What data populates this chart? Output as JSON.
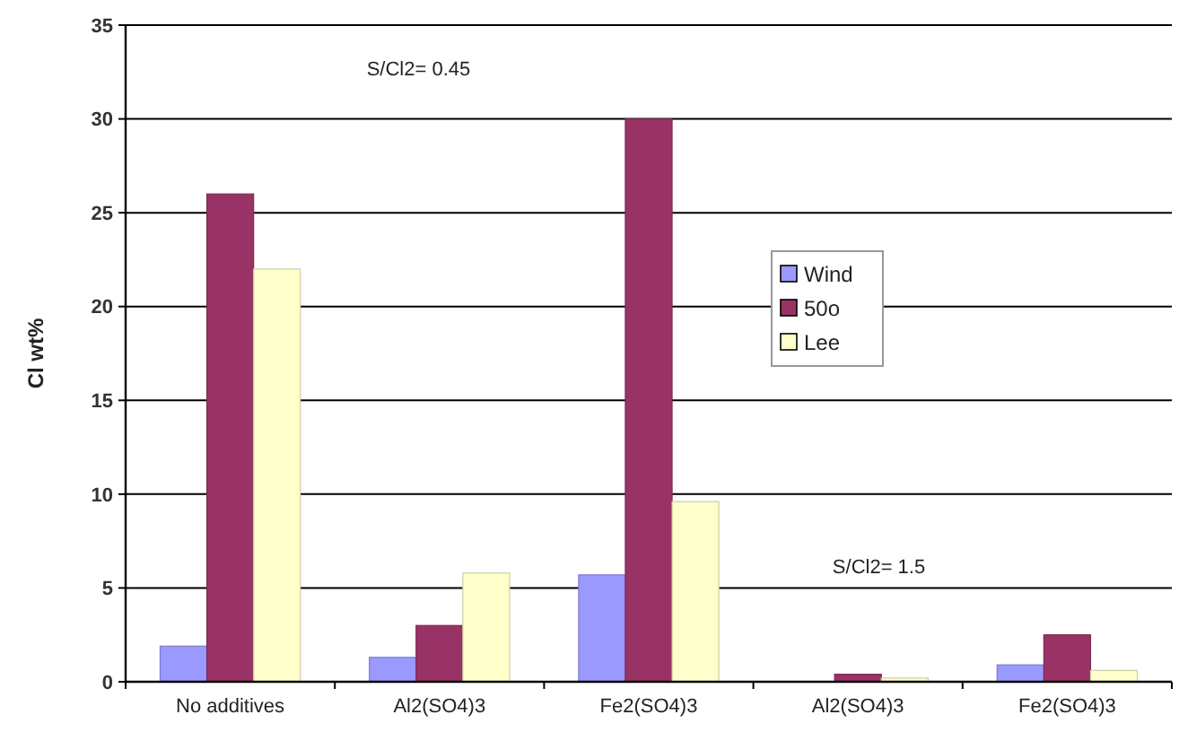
{
  "chart_data": {
    "type": "bar",
    "ylabel": "Cl wt%",
    "categories": [
      "No additives",
      "Al2(SO4)3",
      "Fe2(SO4)3",
      "Al2(SO4)3",
      "Fe2(SO4)3"
    ],
    "series": [
      {
        "name": "Wind",
        "color": "#9999ff",
        "values": [
          1.9,
          1.3,
          5.7,
          0,
          0.9
        ]
      },
      {
        "name": "50o",
        "color": "#993366",
        "values": [
          26,
          3.0,
          30,
          0.4,
          2.5
        ]
      },
      {
        "name": "Lee",
        "color": "#ffffcc",
        "values": [
          22,
          5.8,
          9.6,
          0.2,
          0.6
        ]
      }
    ],
    "ylim": [
      0,
      35
    ],
    "yticks": [
      0,
      5,
      10,
      15,
      20,
      25,
      30,
      35
    ],
    "grid": "y",
    "legend": "right",
    "annotations": [
      "S/Cl2= 0.45",
      "S/Cl2= 1.5"
    ]
  }
}
